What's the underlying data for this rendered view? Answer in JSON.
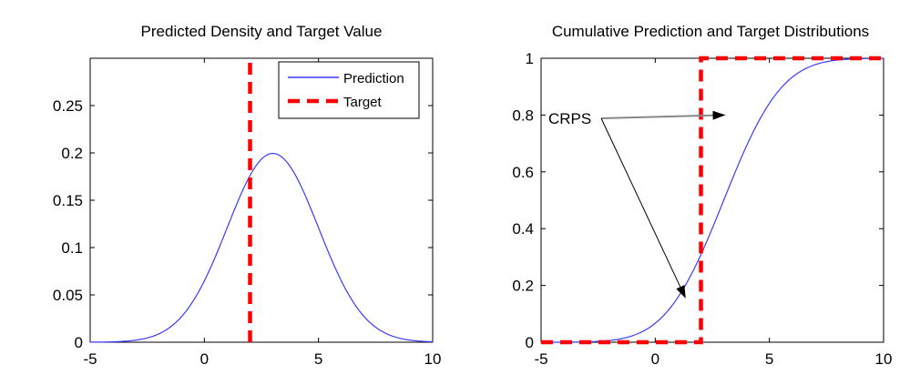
{
  "chart_data": [
    {
      "type": "line",
      "title": "Predicted Density and Target Value",
      "xlabel": "",
      "ylabel": "",
      "xlim": [
        -5,
        10
      ],
      "ylim": [
        0,
        0.3
      ],
      "xticks": [
        -5,
        0,
        5,
        10
      ],
      "xtick_labels": [
        "-5",
        "0",
        "5",
        "10"
      ],
      "yticks": [
        0,
        0.05,
        0.1,
        0.15,
        0.2,
        0.25
      ],
      "ytick_labels": [
        "0",
        "0.05",
        "0.1",
        "0.15",
        "0.2",
        "0.25"
      ],
      "grid": false,
      "legend_position": "top-right",
      "series": [
        {
          "name": "Prediction",
          "color": "#3a3aff",
          "style": "solid",
          "x": [
            -5,
            -4,
            -3,
            -2,
            -1,
            0,
            1,
            2,
            3,
            4,
            5,
            6,
            7,
            8,
            9,
            10
          ],
          "y": [
            0.0003,
            0.0009,
            0.0027,
            0.0088,
            0.027,
            0.065,
            0.121,
            0.176,
            0.199,
            0.176,
            0.121,
            0.065,
            0.027,
            0.0088,
            0.0022,
            0.0004
          ]
        },
        {
          "name": "Target",
          "color": "#ff0000",
          "style": "dashed",
          "x": [
            2,
            2
          ],
          "y": [
            0,
            0.3
          ]
        }
      ]
    },
    {
      "type": "line",
      "title": "Cumulative Prediction and Target Distributions",
      "xlabel": "",
      "ylabel": "",
      "xlim": [
        -5,
        10
      ],
      "ylim": [
        0,
        1
      ],
      "xticks": [
        -5,
        0,
        5,
        10
      ],
      "xtick_labels": [
        "-5",
        "0",
        "5",
        "10"
      ],
      "yticks": [
        0,
        0.2,
        0.4,
        0.6,
        0.8,
        1
      ],
      "ytick_labels": [
        "0",
        "0.2",
        "0.4",
        "0.6",
        "0.8",
        "1"
      ],
      "grid": false,
      "annotation": {
        "text": "CRPS",
        "arrows": [
          {
            "to_x": 3,
            "to_y": 0.8
          },
          {
            "to_x": 1.3,
            "to_y": 0.16
          }
        ]
      },
      "series": [
        {
          "name": "Prediction",
          "color": "#3a3aff",
          "style": "solid",
          "x": [
            -5,
            -4,
            -3,
            -2,
            -1,
            0,
            1,
            2,
            3,
            4,
            5,
            6,
            7,
            8,
            9,
            10
          ],
          "y": [
            0.0002,
            0.0007,
            0.003,
            0.009,
            0.028,
            0.067,
            0.159,
            0.309,
            0.5,
            0.691,
            0.841,
            0.933,
            0.977,
            0.994,
            0.9987,
            0.9998
          ]
        },
        {
          "name": "Target",
          "color": "#ff0000",
          "style": "dashed",
          "x": [
            -5,
            2,
            2,
            10
          ],
          "y": [
            0,
            0,
            1,
            1
          ]
        }
      ]
    }
  ]
}
